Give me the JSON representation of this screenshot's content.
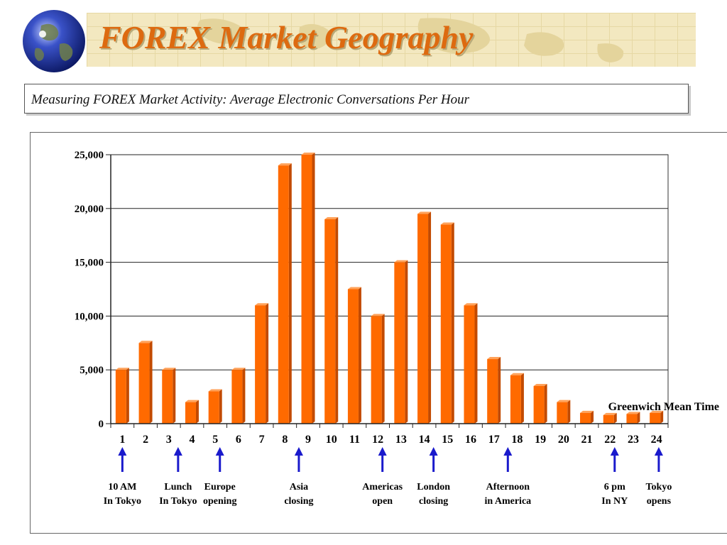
{
  "title": "FOREX Market Geography",
  "subtitle": "Measuring FOREX Market Activity: Average Electronic Conversations Per Hour",
  "colors": {
    "title": "#dd6a10",
    "bar": "#ff6a00",
    "bar_side": "#c24a00",
    "bar_top": "#ffa25a",
    "arrow": "#1a1acc",
    "banner": "#f3e8c0"
  },
  "chart_data": {
    "type": "bar",
    "title": "",
    "xlabel": "Greenwich Mean Time",
    "ylabel": "",
    "categories": [
      "1",
      "2",
      "3",
      "4",
      "5",
      "6",
      "7",
      "8",
      "9",
      "10",
      "11",
      "12",
      "13",
      "14",
      "15",
      "16",
      "17",
      "18",
      "19",
      "20",
      "21",
      "22",
      "23",
      "24"
    ],
    "values": [
      5000,
      7500,
      5000,
      2000,
      3000,
      5000,
      11000,
      24000,
      25000,
      19000,
      12500,
      10000,
      15000,
      19500,
      18500,
      11000,
      6000,
      4500,
      3500,
      2000,
      1000,
      800,
      900,
      1000
    ],
    "ylim": [
      0,
      25000
    ],
    "yticks": [
      "0",
      "5,000",
      "10,000",
      "15,000",
      "20,000",
      "25,000"
    ],
    "grid": true,
    "annotations": [
      {
        "hour": 1,
        "lines": [
          "10 AM",
          "In Tokyo"
        ]
      },
      {
        "hour": 3.4,
        "lines": [
          "Lunch",
          "In Tokyo"
        ]
      },
      {
        "hour": 5.2,
        "lines": [
          "Europe",
          "opening"
        ]
      },
      {
        "hour": 8.6,
        "lines": [
          "Asia",
          "closing"
        ]
      },
      {
        "hour": 12.2,
        "lines": [
          "Americas",
          "open"
        ]
      },
      {
        "hour": 14.4,
        "lines": [
          "London",
          "closing"
        ]
      },
      {
        "hour": 17.6,
        "lines": [
          "Afternoon",
          "in America"
        ]
      },
      {
        "hour": 22.2,
        "lines": [
          "6 pm",
          "In NY"
        ]
      },
      {
        "hour": 24.1,
        "lines": [
          "Tokyo",
          "opens"
        ]
      }
    ]
  }
}
